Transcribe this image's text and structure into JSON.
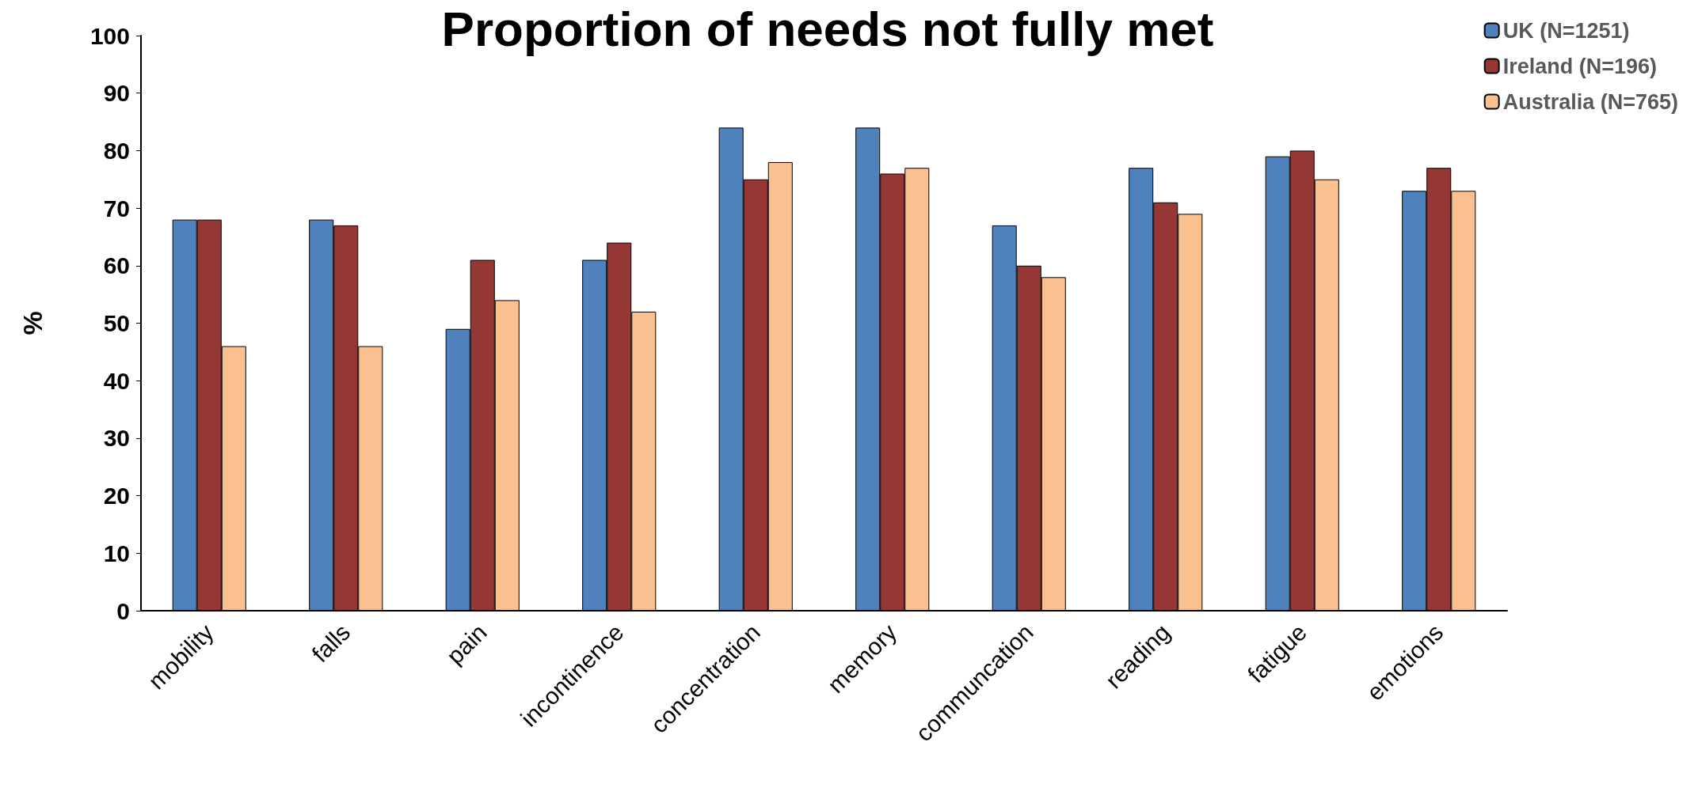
{
  "chart_data": {
    "type": "bar",
    "title": "Proportion of needs not fully met",
    "ylabel": "%",
    "categories": [
      "mobility",
      "falls",
      "pain",
      "incontinence",
      "concentration",
      "memory",
      "communcation",
      "reading",
      "fatigue",
      "emotions"
    ],
    "series": [
      {
        "name": "UK (N=1251)",
        "color": "#4f81bd",
        "values": [
          68,
          68,
          49,
          61,
          84,
          84,
          67,
          77,
          79,
          73
        ]
      },
      {
        "name": "Ireland (N=196)",
        "color": "#953735",
        "values": [
          68,
          67,
          61,
          64,
          75,
          76,
          60,
          71,
          80,
          77
        ]
      },
      {
        "name": "Australia (N=765)",
        "color": "#fac090",
        "values": [
          46,
          46,
          54,
          52,
          78,
          77,
          58,
          69,
          75,
          73
        ]
      }
    ],
    "ylim": [
      0,
      100
    ],
    "yticks": [
      0,
      10,
      20,
      30,
      40,
      50,
      60,
      70,
      80,
      90,
      100
    ],
    "grid": false,
    "legend": "top right"
  }
}
